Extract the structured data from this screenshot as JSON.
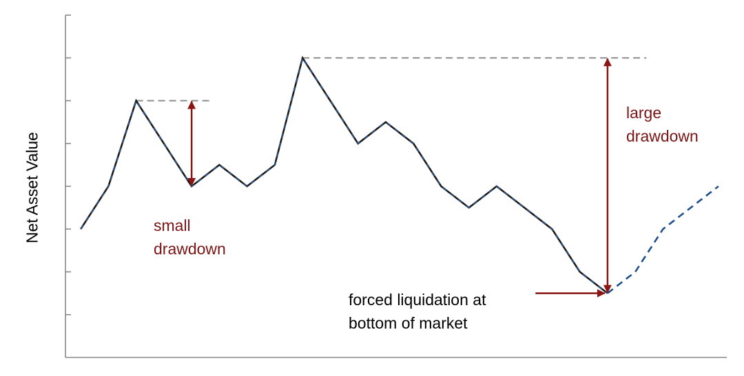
{
  "colors": {
    "line": "#1a1a1a",
    "line_dash": "#2e5d9a",
    "projection": "#1f4e8c",
    "reference": "#8c8c8c",
    "arrow": "#8b1414",
    "axis": "#888888",
    "annotation_red": "#7a1414",
    "annotation_black": "#000000"
  },
  "chart_data": {
    "type": "line",
    "title": "",
    "xlabel": "",
    "ylabel": "Net Asset Value",
    "x": [
      0,
      1,
      2,
      3,
      4,
      5,
      6,
      7,
      8,
      9,
      10,
      11,
      12,
      13,
      14,
      15,
      16,
      17,
      18,
      19
    ],
    "ylim": [
      0,
      8
    ],
    "xlim": [
      -0.55,
      23.3
    ],
    "yticks": [
      1,
      2,
      3,
      4,
      5,
      6,
      7,
      8
    ],
    "series": [
      {
        "values": [
          3,
          4,
          6,
          5,
          4,
          4.5,
          4,
          4.5,
          7,
          6,
          5,
          5.5,
          5,
          4,
          3.5,
          4,
          3.5,
          3,
          2,
          1.5
        ],
        "style": "solid"
      },
      {
        "x": [
          19,
          20,
          21,
          22,
          23
        ],
        "values": [
          1.5,
          2,
          3,
          3.5,
          4
        ],
        "style": "dashed"
      }
    ],
    "reference_lines": [
      {
        "x_start": 2,
        "x_end": 4.65,
        "y": 6
      },
      {
        "x_start": 8,
        "x_end": 20.4,
        "y": 7
      }
    ],
    "annotations": [
      {
        "id": "small",
        "text": "small\ndrawdown",
        "color": "#7a1414",
        "arrow": {
          "x": 4,
          "y_top": 6,
          "y_bottom": 4,
          "double": true
        }
      },
      {
        "id": "large",
        "text": "large\ndrawdown",
        "color": "#7a1414",
        "arrow": {
          "x": 19,
          "y_top": 7,
          "y_bottom": 1.5,
          "double": true
        }
      },
      {
        "id": "forced",
        "text": "forced liquidation at\nbottom of market",
        "color": "#000000",
        "arrow": {
          "from_x": 16.4,
          "to_x": 19,
          "y": 1.5,
          "double": false
        }
      }
    ],
    "grid": false,
    "legend": "none"
  }
}
